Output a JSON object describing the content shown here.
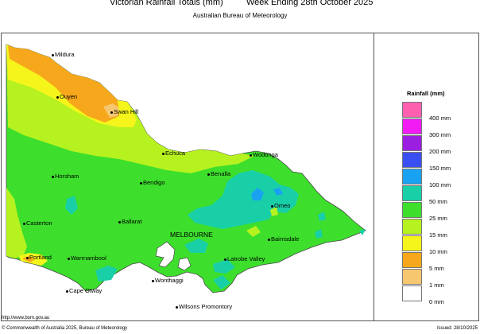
{
  "header": {
    "title": "Victorian Rainfall Totals (mm)",
    "week": "Week Ending 28th October 2025",
    "subtitle": "Australian Bureau of Meteorology"
  },
  "places": [
    {
      "name": "Mildura"
    },
    {
      "name": "Ouyen"
    },
    {
      "name": "Swan Hill"
    },
    {
      "name": "Echuca"
    },
    {
      "name": "Wodonga"
    },
    {
      "name": "Horsham"
    },
    {
      "name": "Benalla"
    },
    {
      "name": "Bendigo"
    },
    {
      "name": "Omeo"
    },
    {
      "name": "Casterton"
    },
    {
      "name": "Ballarat"
    },
    {
      "name": "Bairnsdale"
    },
    {
      "name": "Portland"
    },
    {
      "name": "Warrnambool"
    },
    {
      "name": "Latrobe Valley"
    },
    {
      "name": "Wonthaggi"
    },
    {
      "name": "Cape Otway"
    },
    {
      "name": "Wilsons Promontory"
    }
  ],
  "capital": "MELBOURNE",
  "legend": {
    "title": "Rainfall (mm)",
    "items": [
      {
        "label": "400 mm",
        "color": "#ff5faf"
      },
      {
        "label": "300 mm",
        "color": "#f21bf5"
      },
      {
        "label": "200 mm",
        "color": "#9b1fe0"
      },
      {
        "label": "150 mm",
        "color": "#3a4ff2"
      },
      {
        "label": "100 mm",
        "color": "#1aa2f2"
      },
      {
        "label": "50 mm",
        "color": "#19cfa8"
      },
      {
        "label": "25 mm",
        "color": "#3ddf2c"
      },
      {
        "label": "15 mm",
        "color": "#b6f21f"
      },
      {
        "label": "10 mm",
        "color": "#f6f51b"
      },
      {
        "label": "5 mm",
        "color": "#f7a71b"
      },
      {
        "label": "1 mm",
        "color": "#f7c76f"
      },
      {
        "label": "0 mm",
        "color": "#ffffff"
      }
    ]
  },
  "footer": {
    "url": "http://www.bom.gov.au",
    "copyright": "© Commonwealth of Australia 2025, Bureau of Meteorology",
    "issued": "Issued: 28/10/2025"
  }
}
